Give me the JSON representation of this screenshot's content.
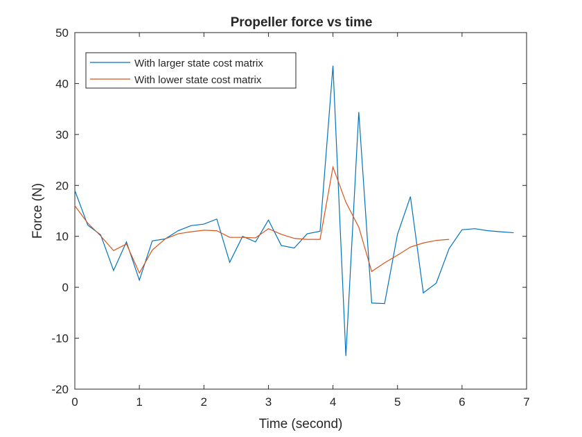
{
  "chart_data": {
    "type": "line",
    "title": "Propeller force vs time",
    "xlabel": "Time (second)",
    "ylabel": "Force (N)",
    "xlim": [
      0,
      7
    ],
    "ylim": [
      -20,
      50
    ],
    "xticks": [
      0,
      1,
      2,
      3,
      4,
      5,
      6,
      7
    ],
    "yticks": [
      -20,
      -10,
      0,
      10,
      20,
      30,
      40,
      50
    ],
    "grid": false,
    "legend_position": "top-left",
    "series": [
      {
        "name": "With larger state cost matrix",
        "color": "#0072BD",
        "x": [
          0,
          0.2,
          0.4,
          0.6,
          0.8,
          1.0,
          1.2,
          1.4,
          1.6,
          1.8,
          2.0,
          2.2,
          2.4,
          2.6,
          2.8,
          3.0,
          3.2,
          3.4,
          3.6,
          3.8,
          4.0,
          4.2,
          4.4,
          4.6,
          4.8,
          5.0,
          5.2,
          5.4,
          5.6,
          5.8,
          6.0,
          6.2,
          6.4,
          6.6,
          6.8
        ],
        "values": [
          19.0,
          12.2,
          10.3,
          3.3,
          8.9,
          1.4,
          9.1,
          9.5,
          11.1,
          12.1,
          12.4,
          13.4,
          4.9,
          10.0,
          8.9,
          13.2,
          8.2,
          7.7,
          10.5,
          11.0,
          43.5,
          -13.5,
          34.4,
          -3.1,
          -3.2,
          10.4,
          17.8,
          -1.1,
          0.8,
          7.6,
          11.3,
          11.5,
          11.1,
          10.9,
          10.7
        ]
      },
      {
        "name": "With lower state cost matrix",
        "color": "#D95319",
        "x": [
          0,
          0.2,
          0.4,
          0.6,
          0.8,
          1.0,
          1.2,
          1.4,
          1.6,
          1.8,
          2.0,
          2.2,
          2.4,
          2.6,
          2.8,
          3.0,
          3.2,
          3.4,
          3.6,
          3.8,
          4.0,
          4.2,
          4.4,
          4.6,
          4.8,
          5.0,
          5.2,
          5.4,
          5.6,
          5.8
        ],
        "values": [
          16.0,
          12.6,
          10.1,
          7.2,
          8.5,
          2.8,
          7.3,
          9.5,
          10.5,
          10.9,
          11.2,
          11.1,
          9.8,
          9.8,
          9.7,
          11.5,
          10.4,
          9.6,
          9.4,
          9.4,
          23.6,
          16.7,
          11.8,
          3.1,
          4.8,
          6.3,
          7.9,
          8.7,
          9.2,
          9.4
        ]
      }
    ]
  }
}
